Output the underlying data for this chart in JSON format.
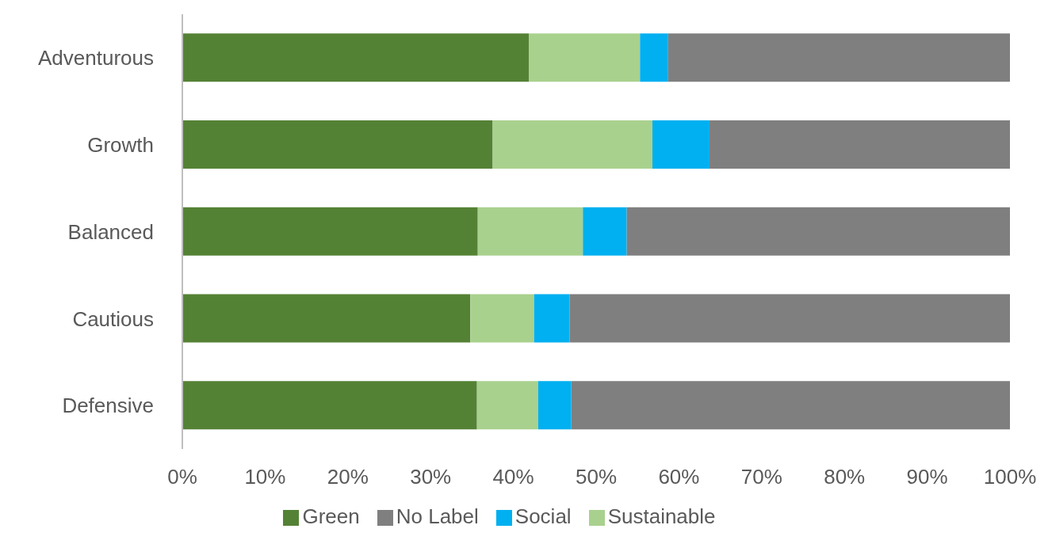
{
  "chart_data": {
    "type": "bar",
    "orientation": "horizontal",
    "stacked": true,
    "categories": [
      "Adventurous",
      "Growth",
      "Balanced",
      "Cautious",
      "Defensive"
    ],
    "series": [
      {
        "name": "Green",
        "color": "#548235",
        "values": [
          41.9,
          37.5,
          35.7,
          34.8,
          35.6
        ]
      },
      {
        "name": "Sustainable",
        "color": "#a9d18e",
        "values": [
          13.4,
          19.3,
          12.7,
          7.7,
          7.4
        ]
      },
      {
        "name": "Social",
        "color": "#00b0f0",
        "values": [
          3.4,
          6.9,
          5.3,
          4.3,
          4.0
        ]
      },
      {
        "name": "No Label",
        "color": "#7f7f7f",
        "values": [
          41.3,
          36.3,
          46.3,
          53.2,
          53.0
        ]
      }
    ],
    "xlim": [
      0,
      100
    ],
    "xticks": [
      {
        "value": 0,
        "label": "0%"
      },
      {
        "value": 10,
        "label": "10%"
      },
      {
        "value": 20,
        "label": "20%"
      },
      {
        "value": 30,
        "label": "30%"
      },
      {
        "value": 40,
        "label": "40%"
      },
      {
        "value": 50,
        "label": "50%"
      },
      {
        "value": 60,
        "label": "60%"
      },
      {
        "value": 70,
        "label": "70%"
      },
      {
        "value": 80,
        "label": "80%"
      },
      {
        "value": 90,
        "label": "90%"
      },
      {
        "value": 100,
        "label": "100%"
      }
    ],
    "legend": "bottom"
  }
}
